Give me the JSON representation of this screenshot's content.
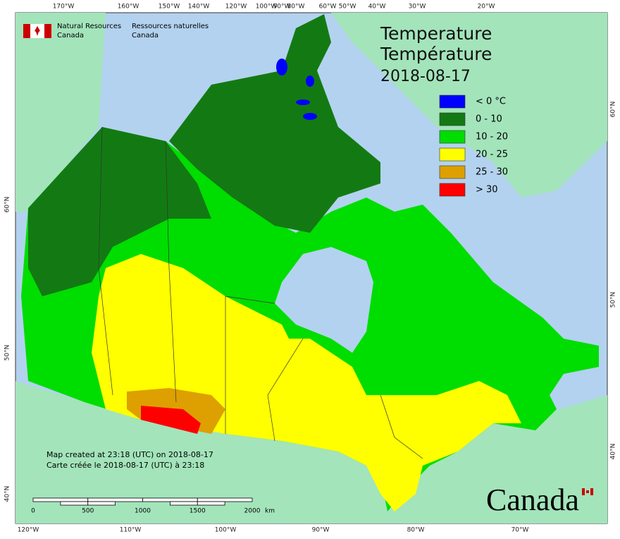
{
  "header": {
    "org_en": [
      "Natural Resources",
      "Canada"
    ],
    "org_fr": [
      "Ressources naturelles",
      "Canada"
    ]
  },
  "title": {
    "lines": [
      "Temperature",
      "Température",
      "2018-08-17"
    ]
  },
  "legend": {
    "items": [
      {
        "label": "< 0 °C",
        "color": "#0000ff"
      },
      {
        "label": "0 - 10",
        "color": "#137a13"
      },
      {
        "label": "10 - 20",
        "color": "#00dd00"
      },
      {
        "label": "20 - 25",
        "color": "#ffff00"
      },
      {
        "label": "25 - 30",
        "color": "#dda000"
      },
      {
        "label": "> 30",
        "color": "#ff0000"
      }
    ]
  },
  "graticule": {
    "top": [
      "170°W",
      "160°W",
      "150°W",
      "140°W",
      "120°W",
      "100°W",
      "90°W",
      "80°W",
      "60°W",
      "50°W",
      "40°W",
      "30°W",
      "20°W"
    ],
    "bottom": [
      "120°W",
      "110°W",
      "100°W",
      "90°W",
      "80°W",
      "70°W"
    ],
    "left": [
      "60°N",
      "50°N",
      "40°N"
    ],
    "right": [
      "60°N",
      "50°N",
      "40°N"
    ]
  },
  "footer": {
    "notes": [
      "Map created at 23:18 (UTC) on 2018-08-17",
      "Carte créée le 2018-08-17 (UTC) à 23:18"
    ]
  },
  "scale_bar": {
    "ticks": [
      0,
      500,
      1000,
      1500,
      2000
    ],
    "unit": "km"
  },
  "wordmark": "Canada"
}
